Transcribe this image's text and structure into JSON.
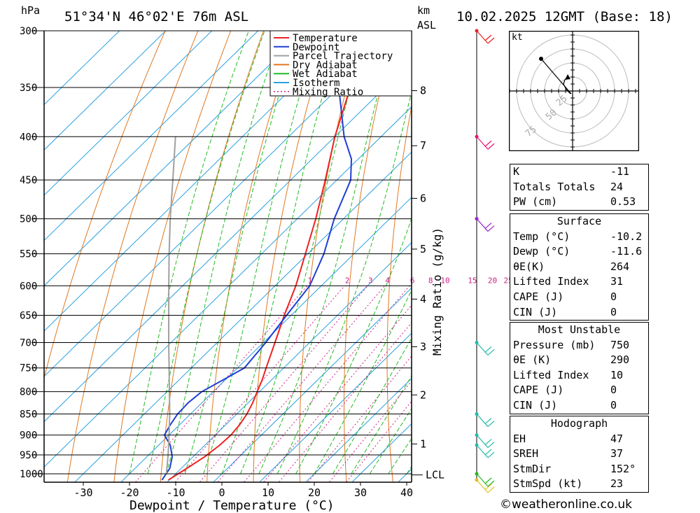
{
  "header": {
    "location": "51°34'N 46°02'E 76m ASL",
    "datetime": "10.02.2025 12GMT (Base: 18)",
    "hpa_unit": "hPa",
    "km_unit": "km",
    "asl_unit": "ASL"
  },
  "legend": {
    "items": [
      {
        "label": "Temperature",
        "color": "#ee2222",
        "style": "solid"
      },
      {
        "label": "Dewpoint",
        "color": "#1f3fd6",
        "style": "solid"
      },
      {
        "label": "Parcel Trajectory",
        "color": "#a0a0a0",
        "style": "solid"
      },
      {
        "label": "Dry Adiabat",
        "color": "#e07820",
        "style": "solid"
      },
      {
        "label": "Wet Adiabat",
        "color": "#22bb22",
        "style": "solid"
      },
      {
        "label": "Isotherm",
        "color": "#2aa0e0",
        "style": "solid"
      },
      {
        "label": "Mixing Ratio",
        "color": "#cc2288",
        "style": "dotted"
      }
    ]
  },
  "chart_data": {
    "type": "line",
    "chart_kind": "skew-T log-P",
    "xlabel": "Dewpoint / Temperature (°C)",
    "ylabel_right": "Mixing Ratio (g/kg)",
    "x_ticks": [
      -30,
      -20,
      -10,
      0,
      10,
      20,
      30,
      40
    ],
    "pressure_levels": [
      300,
      350,
      400,
      450,
      500,
      550,
      600,
      650,
      700,
      750,
      800,
      850,
      900,
      950,
      1000
    ],
    "y_scale": "log",
    "km_ticks": [
      {
        "label": "8",
        "p": 353
      },
      {
        "label": "7",
        "p": 410
      },
      {
        "label": "6",
        "p": 473
      },
      {
        "label": "5",
        "p": 543
      },
      {
        "label": "4",
        "p": 622
      },
      {
        "label": "3",
        "p": 708
      },
      {
        "label": "2",
        "p": 807
      },
      {
        "label": "1",
        "p": 922
      }
    ],
    "lcl": {
      "label": "LCL",
      "p": 1003
    },
    "mixing_ratio_labels": [
      "1",
      "2",
      "3",
      "4",
      "6",
      "8",
      "10",
      "15",
      "20",
      "25"
    ],
    "mixing_ratio_values": [
      1,
      2,
      3,
      4,
      6,
      8,
      10,
      15,
      20,
      25
    ],
    "series": [
      {
        "name": "Temperature",
        "p": [
          1017,
          985,
          955,
          925,
          900,
          875,
          850,
          825,
          800,
          775,
          750,
          700,
          650,
          600,
          550,
          500,
          450,
          400,
          350,
          300
        ],
        "t": [
          -10.2,
          -8.8,
          -7.5,
          -6.8,
          -6.6,
          -7.0,
          -7.8,
          -9.0,
          -10.5,
          -12.0,
          -13.8,
          -17.5,
          -21.5,
          -25.5,
          -30.5,
          -36.0,
          -42.5,
          -50.0,
          -57.5,
          -64.5
        ]
      },
      {
        "name": "Dewpoint",
        "p": [
          1017,
          985,
          955,
          925,
          900,
          875,
          850,
          825,
          800,
          775,
          750,
          700,
          650,
          600,
          550,
          500,
          450,
          425,
          400,
          350,
          300
        ],
        "t": [
          -11.6,
          -12.5,
          -14.5,
          -17.5,
          -21.0,
          -22.0,
          -22.8,
          -23.0,
          -22.5,
          -20.5,
          -18.5,
          -19.5,
          -21.0,
          -22.5,
          -26.5,
          -32.0,
          -37.0,
          -41.5,
          -48.0,
          -60.0,
          -71.0
        ]
      },
      {
        "name": "Parcel Trajectory",
        "p": [
          1003,
          950,
          900,
          850,
          800,
          750,
          700,
          650,
          600,
          550,
          500,
          450,
          400
        ],
        "t": [
          -11.8,
          -15.8,
          -20.0,
          -24.5,
          -29.5,
          -34.8,
          -40.5,
          -46.5,
          -53.0,
          -60.0,
          -67.5,
          -75.5,
          -84.5
        ]
      }
    ],
    "wind_barbs": [
      {
        "p": 300,
        "color": "#ee2222"
      },
      {
        "p": 400,
        "color": "#ee1177"
      },
      {
        "p": 500,
        "color": "#9922cc"
      },
      {
        "p": 700,
        "color": "#22bbaa"
      },
      {
        "p": 850,
        "color": "#22bbaa"
      },
      {
        "p": 900,
        "color": "#22bbaa"
      },
      {
        "p": 925,
        "color": "#22bbaa"
      },
      {
        "p": 1000,
        "color": "#22bb22"
      },
      {
        "p": 1017,
        "color": "#e0c020"
      }
    ]
  },
  "hodograph": {
    "unit": "kt",
    "ring_labels": [
      "25",
      "50",
      "75"
    ]
  },
  "indices": {
    "rows": [
      {
        "label": "K",
        "value": "-11"
      },
      {
        "label": "Totals Totals",
        "value": "24"
      },
      {
        "label": "PW (cm)",
        "value": "0.53"
      }
    ]
  },
  "surface": {
    "title": "Surface",
    "rows": [
      {
        "label": "Temp (°C)",
        "value": "-10.2"
      },
      {
        "label": "Dewp (°C)",
        "value": "-11.6"
      },
      {
        "label": "θE(K)",
        "value": "264"
      },
      {
        "label": "Lifted Index",
        "value": "31"
      },
      {
        "label": "CAPE (J)",
        "value": "0"
      },
      {
        "label": "CIN (J)",
        "value": "0"
      }
    ]
  },
  "most_unstable": {
    "title": "Most Unstable",
    "rows": [
      {
        "label": "Pressure (mb)",
        "value": "750"
      },
      {
        "label": "θE (K)",
        "value": "290"
      },
      {
        "label": "Lifted Index",
        "value": "10"
      },
      {
        "label": "CAPE (J)",
        "value": "0"
      },
      {
        "label": "CIN (J)",
        "value": "0"
      }
    ]
  },
  "hodograph_table": {
    "title": "Hodograph",
    "rows": [
      {
        "label": "EH",
        "value": "47"
      },
      {
        "label": "SREH",
        "value": "37"
      },
      {
        "label": "StmDir",
        "value": "152°"
      },
      {
        "label": "StmSpd (kt)",
        "value": "23"
      }
    ]
  },
  "footer": {
    "copyright": "©weatheronline.co.uk"
  }
}
